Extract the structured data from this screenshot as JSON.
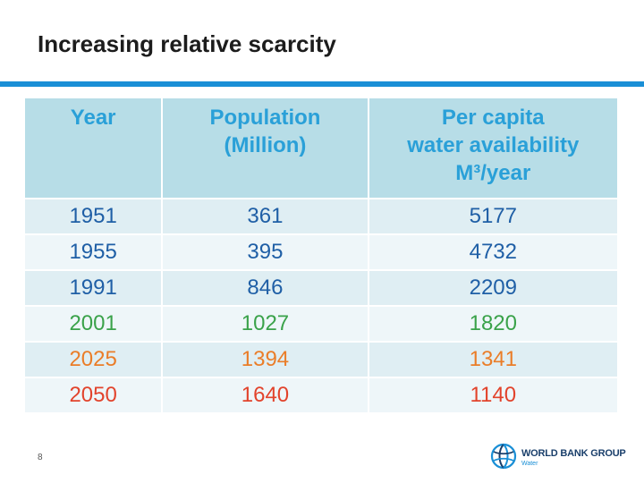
{
  "slide": {
    "title": "Increasing relative scarcity",
    "page_number": "8"
  },
  "table": {
    "headers": {
      "year": [
        "Year"
      ],
      "population": [
        "Population",
        "(Million)"
      ],
      "water": [
        "Per capita",
        "water availability",
        "M³/year"
      ]
    },
    "rows": [
      {
        "year": "1951",
        "population": "361",
        "water": "5177",
        "color": "#1f5fa6"
      },
      {
        "year": "1955",
        "population": "395",
        "water": "4732",
        "color": "#1f5fa6"
      },
      {
        "year": "1991",
        "population": "846",
        "water": "2209",
        "color": "#1f5fa6"
      },
      {
        "year": "2001",
        "population": "1027",
        "water": "1820",
        "color": "#3aa24a"
      },
      {
        "year": "2025",
        "population": "1394",
        "water": "1341",
        "color": "#ea7d28"
      },
      {
        "year": "2050",
        "population": "1640",
        "water": "1140",
        "color": "#e2432c"
      }
    ]
  },
  "logo": {
    "name": "WORLD BANK GROUP",
    "sub": "Water",
    "icon": "globe-icon"
  }
}
